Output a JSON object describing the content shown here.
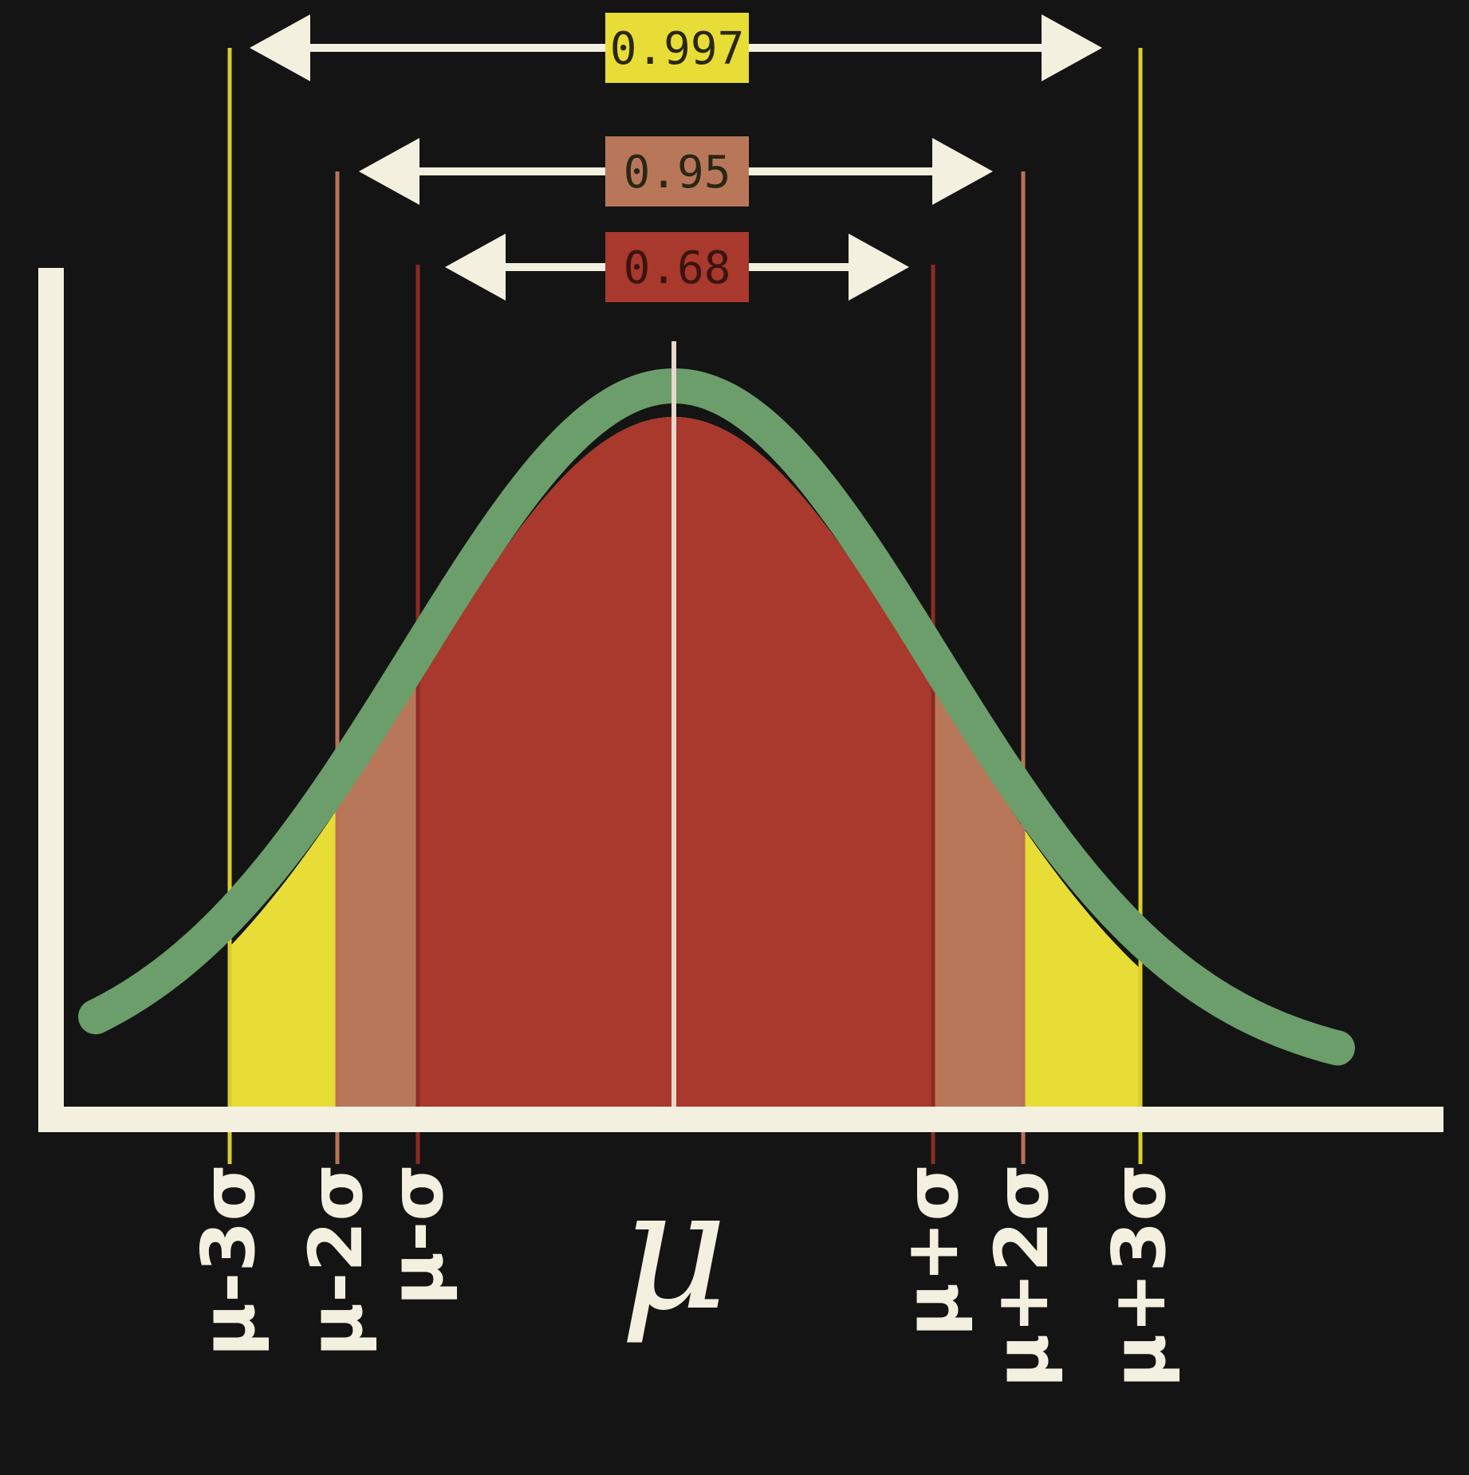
{
  "intervals": [
    {
      "label": "0.997",
      "k": 3,
      "color": "#e7dd36",
      "text_color": "#2a2616"
    },
    {
      "label": "0.95",
      "k": 2,
      "color": "#b9775a",
      "text_color": "#2a2616"
    },
    {
      "label": "0.68",
      "k": 1,
      "color": "#a8392c",
      "text_color": "#3b1410"
    }
  ],
  "center_label": "μ",
  "tick_labels": [
    {
      "k": -3,
      "text": "μ-3σ"
    },
    {
      "k": -2,
      "text": "μ-2σ"
    },
    {
      "k": -1,
      "text": "μ-σ"
    },
    {
      "k": 1,
      "text": "μ+σ"
    },
    {
      "k": 2,
      "text": "μ+2σ"
    },
    {
      "k": 3,
      "text": "μ+3σ"
    }
  ],
  "colors": {
    "background": "#141414",
    "axis": "#f4f0df",
    "curve": "#6b9e6a",
    "fill_1sigma": "#a8392c",
    "fill_2sigma": "#b9775a",
    "fill_3sigma": "#e7dd36",
    "line_1sigma": "#8e2b22",
    "line_2sigma": "#b97256",
    "line_3sigma": "#d9cd2e",
    "center_line": "#e8d8cc",
    "arrow": "#f4f0df"
  }
}
